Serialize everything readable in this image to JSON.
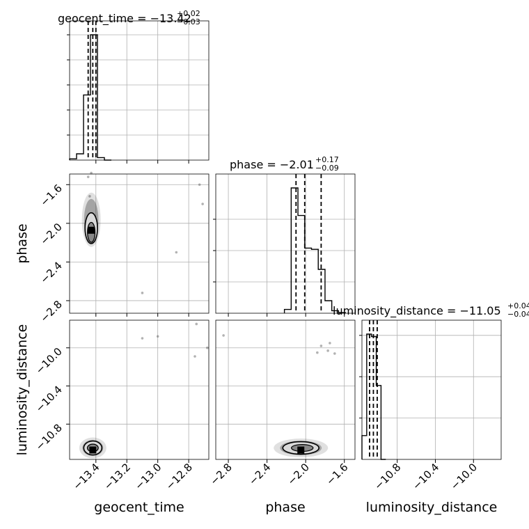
{
  "chart_data": {
    "type": "corner",
    "parameters": [
      {
        "name": "geocent_time",
        "xlabel": "geocent_time",
        "ylabel": "",
        "title_main": "geocent_time = −13.42",
        "title_plus": "+0.02",
        "title_minus": "−0.03",
        "median": -13.42,
        "quantiles": [
          -13.45,
          -13.42,
          -13.4
        ],
        "range": [
          -13.57,
          -12.67
        ],
        "ticks": [
          -13.4,
          -13.2,
          -13.0,
          -12.8
        ],
        "tick_labels": [
          "−13.4",
          "−13.2",
          "−13.0",
          "−12.8"
        ],
        "hist_bins": [
          -13.57,
          -13.525,
          -13.48,
          -13.435,
          -13.39,
          -13.345,
          -13.3
        ],
        "hist_counts": [
          0.01,
          0.05,
          0.52,
          1.0,
          0.02,
          0.0
        ]
      },
      {
        "name": "phase",
        "xlabel": "phase",
        "ylabel": "phase",
        "title_main": "phase = −2.01",
        "title_plus": "+0.17",
        "title_minus": "−0.09",
        "median": -2.01,
        "quantiles": [
          -2.1,
          -2.01,
          -1.84
        ],
        "range": [
          -2.93,
          -1.49
        ],
        "ticks": [
          -2.8,
          -2.4,
          -2.0,
          -1.6
        ],
        "tick_labels": [
          "−2.8",
          "−2.4",
          "−2.0",
          "−1.6"
        ],
        "hist_bins": [
          -2.22,
          -2.15,
          -2.08,
          -2.01,
          -1.94,
          -1.87,
          -1.8,
          -1.73,
          -1.66,
          -1.59
        ],
        "hist_counts": [
          0.03,
          1.0,
          0.78,
          0.52,
          0.51,
          0.35,
          0.1,
          0.02,
          0.005
        ],
        "ytick_fracs": [
          0.25,
          0.5,
          0.75
        ]
      },
      {
        "name": "luminosity_distance",
        "xlabel": "luminosity_distance",
        "ylabel": "luminosity_distance",
        "title_main": "luminosity_distance = −11.05",
        "title_plus": "+0.04",
        "title_minus": "−0.04",
        "median": -11.05,
        "quantiles": [
          -11.09,
          -11.05,
          -11.01
        ],
        "range": [
          -11.17,
          -9.71
        ],
        "ticks": [
          -10.8,
          -10.4,
          -10.0
        ],
        "tick_labels": [
          "−10.8",
          "−10.4",
          "−10.0"
        ],
        "hist_bins": [
          -11.17,
          -11.12,
          -11.07,
          -11.02,
          -10.97,
          -10.92
        ],
        "hist_counts": [
          0.19,
          1.0,
          0.98,
          0.59,
          0.0
        ],
        "ytick_fracs": [
          0.33,
          0.66,
          0.99
        ]
      }
    ],
    "contours": [
      {
        "x": "geocent_time",
        "y": "phase",
        "center": [
          -13.43,
          -2.05
        ],
        "scatter": [
          [
            -13.43,
            -1.48
          ],
          [
            -13.45,
            -1.52
          ],
          [
            -13.44,
            -1.72
          ],
          [
            -13.43,
            -2.18
          ],
          [
            -12.73,
            -1.6
          ],
          [
            -12.71,
            -1.8
          ],
          [
            -12.88,
            -2.3
          ],
          [
            -13.1,
            -2.72
          ]
        ]
      },
      {
        "x": "geocent_time",
        "y": "luminosity_distance",
        "center": [
          -13.42,
          -11.05
        ],
        "scatter": [
          [
            -13.1,
            -9.9
          ],
          [
            -13.0,
            -9.88
          ],
          [
            -12.75,
            -9.75
          ],
          [
            -12.76,
            -10.09
          ],
          [
            -12.68,
            -10.0
          ]
        ]
      },
      {
        "x": "phase",
        "y": "luminosity_distance",
        "center": [
          -2.05,
          -11.05
        ],
        "scatter": [
          [
            -2.85,
            -9.87
          ],
          [
            -1.84,
            -9.98
          ],
          [
            -1.77,
            -10.03
          ],
          [
            -1.7,
            -10.06
          ],
          [
            -1.88,
            -10.05
          ],
          [
            -1.75,
            -9.95
          ]
        ]
      }
    ],
    "grid": true,
    "quantile_style": "dashed"
  }
}
